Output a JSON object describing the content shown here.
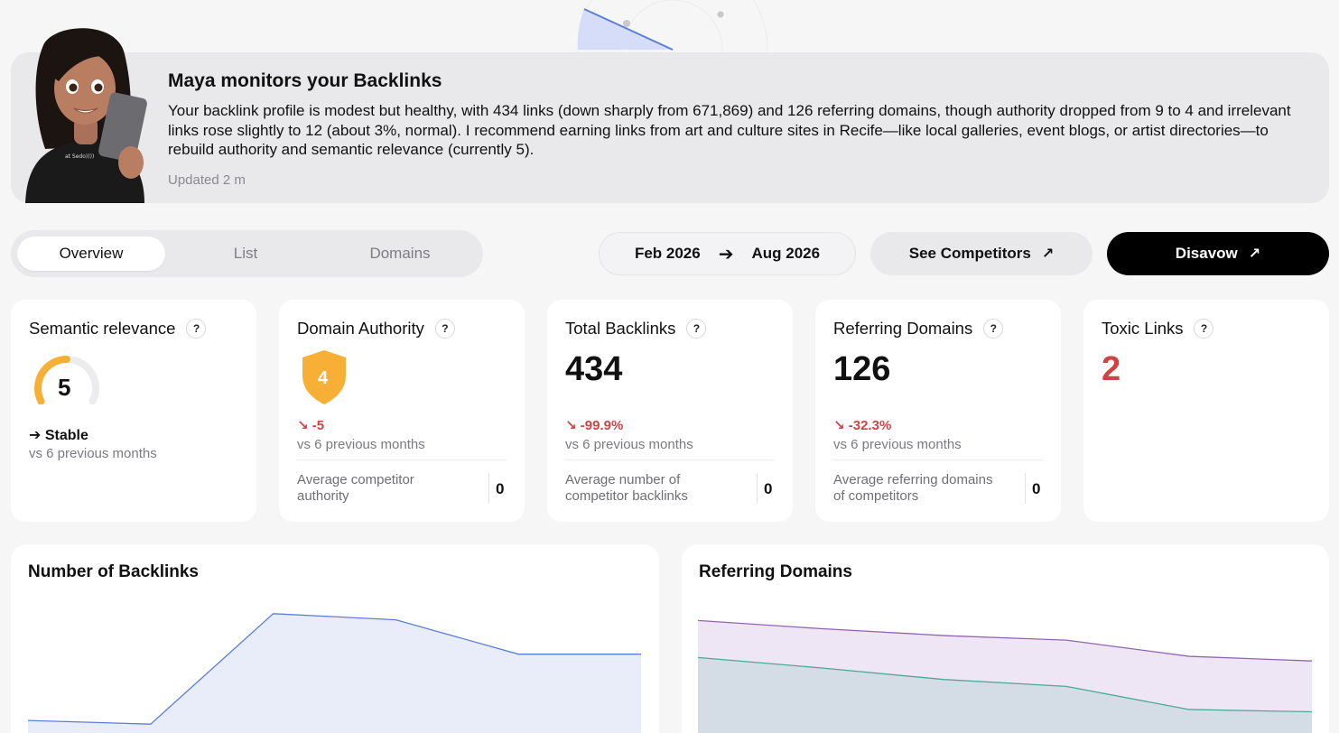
{
  "maya": {
    "title": "Maya monitors your Backlinks",
    "message": "Your backlink profile is modest but healthy, with 434 links (down sharply from 671,869) and 126 referring domains, though authority dropped from 9 to 4 and irrelevant links rose slightly to 12 (about 3%, normal). I recommend earning links from art and culture sites in Recife—like local galleries, event blogs, or artist directories—to rebuild authority and semantic relevance (currently 5).",
    "updated": "Updated 2 m",
    "shirt_text": "at Sedo))))"
  },
  "tabs": [
    {
      "label": "Overview",
      "active": true
    },
    {
      "label": "List",
      "active": false
    },
    {
      "label": "Domains",
      "active": false
    }
  ],
  "date_range": {
    "start": "Feb 2026",
    "end": "Aug 2026"
  },
  "buttons": {
    "competitors": "See Competitors",
    "disavow": "Disavow"
  },
  "metrics": {
    "semantic": {
      "title": "Semantic relevance",
      "value": "5",
      "gauge_fraction": 0.5,
      "trend": "Stable",
      "sub": "vs 6 previous months"
    },
    "authority": {
      "title": "Domain Authority",
      "value": "4",
      "delta": "-5",
      "sub": "vs 6 previous months",
      "comp_label": "Average competitor authority",
      "comp_value": "0"
    },
    "backlinks": {
      "title": "Total Backlinks",
      "value": "434",
      "delta": "-99.9%",
      "sub": "vs 6 previous months",
      "comp_label": "Average number of competitor backlinks",
      "comp_value": "0"
    },
    "domains": {
      "title": "Referring Domains",
      "value": "126",
      "delta": "-32.3%",
      "sub": "vs 6 previous months",
      "comp_label": "Average referring domains of competitors",
      "comp_value": "0"
    },
    "toxic": {
      "title": "Toxic Links",
      "value": "2"
    }
  },
  "help_symbol": "?",
  "colors": {
    "accent_red": "#d14343",
    "gauge_orange": "#f7b035",
    "backlinks_line": "#5b7fd6",
    "domains_line_purple": "#9463b8",
    "domains_line_teal": "#4fa79a"
  },
  "chart_data": [
    {
      "type": "area",
      "title": "Number of Backlinks",
      "x": [
        0,
        1,
        2,
        3,
        4,
        5
      ],
      "series": [
        {
          "values": [
            0.08,
            0.05,
            0.95,
            0.9,
            0.62,
            0.62
          ]
        }
      ],
      "ylim": [
        0,
        1
      ]
    },
    {
      "type": "area",
      "title": "Referring Domains",
      "x": [
        0,
        1,
        2,
        3,
        4,
        5
      ],
      "series": [
        {
          "values": [
            0.95,
            0.88,
            0.82,
            0.78,
            0.64,
            0.6
          ]
        },
        {
          "values": [
            0.63,
            0.54,
            0.44,
            0.38,
            0.18,
            0.16
          ]
        }
      ],
      "ylim": [
        0,
        1
      ]
    }
  ]
}
